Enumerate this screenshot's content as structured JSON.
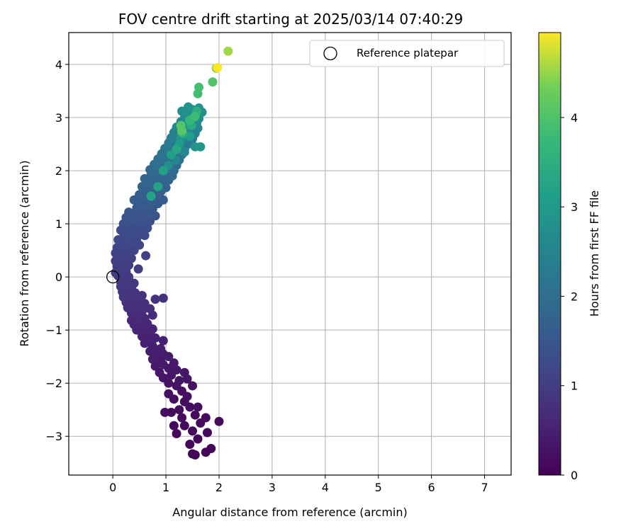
{
  "chart_data": {
    "type": "scatter",
    "title": "FOV centre drift starting at 2025/03/14 07:40:29",
    "xlabel": "Angular distance from reference (arcmin)",
    "ylabel": "Rotation from reference (arcmin)",
    "xlim": [
      -0.83,
      7.5
    ],
    "ylim": [
      -3.73,
      4.6
    ],
    "xticks": [
      0,
      1,
      2,
      3,
      4,
      5,
      6,
      7
    ],
    "yticks": [
      -3,
      -2,
      -1,
      0,
      1,
      2,
      3,
      4
    ],
    "grid": true,
    "legend": {
      "placement": "top-right",
      "entries": [
        "Reference platepar"
      ]
    },
    "reference_point": {
      "x": 0,
      "y": 0
    },
    "colorbar": {
      "label": "Hours from first FF file",
      "colormap": "viridis",
      "range": [
        0,
        4.95
      ],
      "ticks": [
        0,
        1,
        2,
        3,
        4
      ]
    },
    "points": [
      {
        "x": 1.55,
        "y": -3.35,
        "h": 0.05
      },
      {
        "x": 1.5,
        "y": -3.33,
        "h": 0.05
      },
      {
        "x": 1.75,
        "y": -3.3,
        "h": 0.08
      },
      {
        "x": 1.85,
        "y": -3.23,
        "h": 0.08
      },
      {
        "x": 1.45,
        "y": -3.15,
        "h": 0.1
      },
      {
        "x": 1.6,
        "y": -3.05,
        "h": 0.1
      },
      {
        "x": 1.2,
        "y": -2.95,
        "h": 0.12
      },
      {
        "x": 1.5,
        "y": -2.9,
        "h": 0.12
      },
      {
        "x": 1.78,
        "y": -2.93,
        "h": 0.12
      },
      {
        "x": 1.15,
        "y": -2.8,
        "h": 0.12
      },
      {
        "x": 1.35,
        "y": -2.8,
        "h": 0.14
      },
      {
        "x": 1.65,
        "y": -2.75,
        "h": 0.14
      },
      {
        "x": 2.0,
        "y": -2.72,
        "h": 0.14
      },
      {
        "x": 1.3,
        "y": -2.65,
        "h": 0.16
      },
      {
        "x": 1.55,
        "y": -2.6,
        "h": 0.16
      },
      {
        "x": 1.75,
        "y": -2.65,
        "h": 0.16
      },
      {
        "x": 1.1,
        "y": -2.55,
        "h": 0.18
      },
      {
        "x": 1.25,
        "y": -2.5,
        "h": 0.18
      },
      {
        "x": 1.45,
        "y": -2.45,
        "h": 0.2
      },
      {
        "x": 1.6,
        "y": -2.45,
        "h": 0.2
      },
      {
        "x": 0.98,
        "y": -2.55,
        "h": 0.2
      },
      {
        "x": 1.35,
        "y": -2.35,
        "h": 0.22
      },
      {
        "x": 1.15,
        "y": -2.3,
        "h": 0.22
      },
      {
        "x": 1.4,
        "y": -2.25,
        "h": 0.24
      },
      {
        "x": 1.05,
        "y": -2.2,
        "h": 0.24
      },
      {
        "x": 1.3,
        "y": -2.15,
        "h": 0.26
      },
      {
        "x": 1.2,
        "y": -2.05,
        "h": 0.28
      },
      {
        "x": 1.5,
        "y": -2.05,
        "h": 0.28
      },
      {
        "x": 1.05,
        "y": -2.0,
        "h": 0.3
      },
      {
        "x": 1.25,
        "y": -1.95,
        "h": 0.3
      },
      {
        "x": 1.4,
        "y": -1.92,
        "h": 0.3
      },
      {
        "x": 0.95,
        "y": -1.9,
        "h": 0.32
      },
      {
        "x": 1.1,
        "y": -1.85,
        "h": 0.32
      },
      {
        "x": 1.35,
        "y": -1.8,
        "h": 0.34
      },
      {
        "x": 0.88,
        "y": -1.8,
        "h": 0.34
      },
      {
        "x": 1.2,
        "y": -1.75,
        "h": 0.36
      },
      {
        "x": 1.05,
        "y": -1.72,
        "h": 0.36
      },
      {
        "x": 0.8,
        "y": -1.68,
        "h": 0.38
      },
      {
        "x": 0.95,
        "y": -1.65,
        "h": 0.38
      },
      {
        "x": 1.15,
        "y": -1.62,
        "h": 0.38
      },
      {
        "x": 0.75,
        "y": -1.55,
        "h": 0.4
      },
      {
        "x": 0.9,
        "y": -1.55,
        "h": 0.4
      },
      {
        "x": 1.05,
        "y": -1.5,
        "h": 0.42
      },
      {
        "x": 0.95,
        "y": -1.45,
        "h": 0.42
      },
      {
        "x": 0.8,
        "y": -1.45,
        "h": 0.44
      },
      {
        "x": 0.7,
        "y": -1.4,
        "h": 0.44
      },
      {
        "x": 0.9,
        "y": -1.35,
        "h": 0.46
      },
      {
        "x": 0.75,
        "y": -1.3,
        "h": 0.46
      },
      {
        "x": 0.6,
        "y": -1.25,
        "h": 0.48
      },
      {
        "x": 0.95,
        "y": -1.2,
        "h": 0.48
      },
      {
        "x": 0.65,
        "y": -1.2,
        "h": 0.5
      },
      {
        "x": 0.8,
        "y": -1.15,
        "h": 0.5
      },
      {
        "x": 0.55,
        "y": -1.12,
        "h": 0.52
      },
      {
        "x": 0.7,
        "y": -1.08,
        "h": 0.52
      },
      {
        "x": 0.6,
        "y": -1.02,
        "h": 0.54
      },
      {
        "x": 0.45,
        "y": -1.0,
        "h": 0.56
      },
      {
        "x": 0.75,
        "y": -0.98,
        "h": 0.56
      },
      {
        "x": 0.55,
        "y": -0.92,
        "h": 0.58
      },
      {
        "x": 0.4,
        "y": -0.9,
        "h": 0.6
      },
      {
        "x": 0.65,
        "y": -0.88,
        "h": 0.6
      },
      {
        "x": 0.5,
        "y": -0.85,
        "h": 0.62
      },
      {
        "x": 0.35,
        "y": -0.82,
        "h": 0.62
      },
      {
        "x": 0.6,
        "y": -0.78,
        "h": 0.64
      },
      {
        "x": 0.45,
        "y": -0.75,
        "h": 0.66
      },
      {
        "x": 0.75,
        "y": -0.72,
        "h": 0.66
      },
      {
        "x": 0.35,
        "y": -0.68,
        "h": 0.68
      },
      {
        "x": 0.55,
        "y": -0.65,
        "h": 0.7
      },
      {
        "x": 0.42,
        "y": -0.62,
        "h": 0.7
      },
      {
        "x": 0.7,
        "y": -0.6,
        "h": 0.72
      },
      {
        "x": 0.28,
        "y": -0.58,
        "h": 0.72
      },
      {
        "x": 0.5,
        "y": -0.55,
        "h": 0.74
      },
      {
        "x": 0.38,
        "y": -0.52,
        "h": 0.74
      },
      {
        "x": 0.6,
        "y": -0.5,
        "h": 0.76
      },
      {
        "x": 0.25,
        "y": -0.48,
        "h": 0.76
      },
      {
        "x": 0.48,
        "y": -0.45,
        "h": 0.78
      },
      {
        "x": 0.8,
        "y": -0.42,
        "h": 0.78
      },
      {
        "x": 0.95,
        "y": -0.4,
        "h": 0.8
      },
      {
        "x": 0.35,
        "y": -0.4,
        "h": 0.8
      },
      {
        "x": 0.2,
        "y": -0.38,
        "h": 0.82
      },
      {
        "x": 0.55,
        "y": -0.35,
        "h": 0.82
      },
      {
        "x": 0.3,
        "y": -0.32,
        "h": 0.84
      },
      {
        "x": 0.42,
        "y": -0.3,
        "h": 0.84
      },
      {
        "x": 0.18,
        "y": -0.28,
        "h": 0.86
      },
      {
        "x": 0.25,
        "y": -0.22,
        "h": 0.86
      },
      {
        "x": 0.35,
        "y": -0.2,
        "h": 0.88
      },
      {
        "x": 0.15,
        "y": -0.18,
        "h": 0.88
      },
      {
        "x": 0.28,
        "y": -0.15,
        "h": 0.9
      },
      {
        "x": 0.4,
        "y": -0.12,
        "h": 0.9
      },
      {
        "x": 0.15,
        "y": -0.1,
        "h": 0.9
      },
      {
        "x": 0.22,
        "y": -0.05,
        "h": 0.92
      },
      {
        "x": 0.3,
        "y": 0.0,
        "h": 0.92
      },
      {
        "x": 0.1,
        "y": 0.02,
        "h": 0.94
      },
      {
        "x": 0.18,
        "y": 0.05,
        "h": 0.94
      },
      {
        "x": 0.05,
        "y": 0.08,
        "h": 0.96
      },
      {
        "x": 0.25,
        "y": 0.1,
        "h": 0.96
      },
      {
        "x": 0.12,
        "y": 0.12,
        "h": 0.98
      },
      {
        "x": 0.48,
        "y": 0.15,
        "h": 0.98
      },
      {
        "x": 0.2,
        "y": 0.18,
        "h": 1.0
      },
      {
        "x": 0.08,
        "y": 0.2,
        "h": 1.0
      },
      {
        "x": 0.3,
        "y": 0.22,
        "h": 1.02
      },
      {
        "x": 0.15,
        "y": 0.25,
        "h": 1.02
      },
      {
        "x": 0.05,
        "y": 0.3,
        "h": 1.04
      },
      {
        "x": 0.22,
        "y": 0.32,
        "h": 1.04
      },
      {
        "x": 0.35,
        "y": 0.35,
        "h": 1.06
      },
      {
        "x": 0.12,
        "y": 0.38,
        "h": 1.06
      },
      {
        "x": 0.62,
        "y": 0.4,
        "h": 1.08
      },
      {
        "x": 0.25,
        "y": 0.42,
        "h": 1.08
      },
      {
        "x": 0.05,
        "y": 0.45,
        "h": 1.1
      },
      {
        "x": 0.18,
        "y": 0.48,
        "h": 1.1
      },
      {
        "x": 0.4,
        "y": 0.5,
        "h": 1.12
      },
      {
        "x": 0.3,
        "y": 0.52,
        "h": 1.12
      },
      {
        "x": 0.08,
        "y": 0.55,
        "h": 1.14
      },
      {
        "x": 0.22,
        "y": 0.58,
        "h": 1.14
      },
      {
        "x": 0.5,
        "y": 0.6,
        "h": 1.16
      },
      {
        "x": 0.15,
        "y": 0.62,
        "h": 1.16
      },
      {
        "x": 0.35,
        "y": 0.65,
        "h": 1.18
      },
      {
        "x": 0.28,
        "y": 0.68,
        "h": 1.2
      },
      {
        "x": 0.1,
        "y": 0.7,
        "h": 1.2
      },
      {
        "x": 0.45,
        "y": 0.72,
        "h": 1.22
      },
      {
        "x": 0.2,
        "y": 0.75,
        "h": 1.22
      },
      {
        "x": 0.6,
        "y": 0.78,
        "h": 1.24
      },
      {
        "x": 0.35,
        "y": 0.8,
        "h": 1.26
      },
      {
        "x": 0.25,
        "y": 0.82,
        "h": 1.26
      },
      {
        "x": 0.5,
        "y": 0.85,
        "h": 1.28
      },
      {
        "x": 0.15,
        "y": 0.88,
        "h": 1.28
      },
      {
        "x": 0.4,
        "y": 0.9,
        "h": 1.3
      },
      {
        "x": 0.65,
        "y": 0.92,
        "h": 1.32
      },
      {
        "x": 0.3,
        "y": 0.95,
        "h": 1.32
      },
      {
        "x": 0.55,
        "y": 0.98,
        "h": 1.34
      },
      {
        "x": 0.2,
        "y": 1.0,
        "h": 1.36
      },
      {
        "x": 0.45,
        "y": 1.02,
        "h": 1.36
      },
      {
        "x": 0.7,
        "y": 1.05,
        "h": 1.38
      },
      {
        "x": 0.35,
        "y": 1.08,
        "h": 1.4
      },
      {
        "x": 0.6,
        "y": 1.1,
        "h": 1.4
      },
      {
        "x": 0.25,
        "y": 1.12,
        "h": 1.42
      },
      {
        "x": 0.5,
        "y": 1.15,
        "h": 1.44
      },
      {
        "x": 0.8,
        "y": 1.15,
        "h": 1.44
      },
      {
        "x": 0.4,
        "y": 1.18,
        "h": 1.46
      },
      {
        "x": 0.65,
        "y": 1.2,
        "h": 1.48
      },
      {
        "x": 0.3,
        "y": 1.22,
        "h": 1.48
      },
      {
        "x": 0.55,
        "y": 1.25,
        "h": 1.5
      },
      {
        "x": 0.75,
        "y": 1.28,
        "h": 1.52
      },
      {
        "x": 0.45,
        "y": 1.3,
        "h": 1.52
      },
      {
        "x": 0.6,
        "y": 1.35,
        "h": 1.54
      },
      {
        "x": 0.85,
        "y": 1.38,
        "h": 1.56
      },
      {
        "x": 0.5,
        "y": 1.4,
        "h": 1.56
      },
      {
        "x": 0.7,
        "y": 1.42,
        "h": 1.58
      },
      {
        "x": 0.4,
        "y": 1.45,
        "h": 1.6
      },
      {
        "x": 0.95,
        "y": 1.45,
        "h": 1.6
      },
      {
        "x": 0.6,
        "y": 1.5,
        "h": 1.62
      },
      {
        "x": 0.8,
        "y": 1.52,
        "h": 1.64
      },
      {
        "x": 0.5,
        "y": 1.55,
        "h": 1.64
      },
      {
        "x": 0.7,
        "y": 1.58,
        "h": 1.66
      },
      {
        "x": 0.9,
        "y": 1.6,
        "h": 1.68
      },
      {
        "x": 0.6,
        "y": 1.62,
        "h": 1.7
      },
      {
        "x": 0.75,
        "y": 1.65,
        "h": 1.7
      },
      {
        "x": 1.0,
        "y": 1.68,
        "h": 1.72
      },
      {
        "x": 0.55,
        "y": 1.7,
        "h": 1.74
      },
      {
        "x": 0.85,
        "y": 1.72,
        "h": 1.74
      },
      {
        "x": 0.65,
        "y": 1.75,
        "h": 1.76
      },
      {
        "x": 0.95,
        "y": 1.78,
        "h": 1.78
      },
      {
        "x": 0.75,
        "y": 1.8,
        "h": 1.8
      },
      {
        "x": 1.05,
        "y": 1.82,
        "h": 1.8
      },
      {
        "x": 0.6,
        "y": 1.85,
        "h": 1.82
      },
      {
        "x": 0.88,
        "y": 1.88,
        "h": 1.84
      },
      {
        "x": 1.12,
        "y": 1.9,
        "h": 1.86
      },
      {
        "x": 0.72,
        "y": 1.92,
        "h": 1.86
      },
      {
        "x": 0.98,
        "y": 1.95,
        "h": 1.88
      },
      {
        "x": 0.82,
        "y": 1.98,
        "h": 1.9
      },
      {
        "x": 1.15,
        "y": 2.0,
        "h": 1.92
      },
      {
        "x": 0.7,
        "y": 2.02,
        "h": 1.92
      },
      {
        "x": 1.0,
        "y": 2.05,
        "h": 1.94
      },
      {
        "x": 0.9,
        "y": 2.08,
        "h": 1.96
      },
      {
        "x": 1.2,
        "y": 2.1,
        "h": 1.98
      },
      {
        "x": 0.78,
        "y": 2.12,
        "h": 2.0
      },
      {
        "x": 1.08,
        "y": 2.15,
        "h": 2.0
      },
      {
        "x": 0.95,
        "y": 2.18,
        "h": 2.02
      },
      {
        "x": 1.25,
        "y": 2.2,
        "h": 2.04
      },
      {
        "x": 0.85,
        "y": 2.22,
        "h": 2.06
      },
      {
        "x": 1.15,
        "y": 2.25,
        "h": 2.08
      },
      {
        "x": 1.0,
        "y": 2.28,
        "h": 2.1
      },
      {
        "x": 1.3,
        "y": 2.3,
        "h": 2.12
      },
      {
        "x": 0.92,
        "y": 2.32,
        "h": 2.14
      },
      {
        "x": 1.22,
        "y": 2.35,
        "h": 2.16
      },
      {
        "x": 1.08,
        "y": 2.38,
        "h": 2.18
      },
      {
        "x": 1.35,
        "y": 2.4,
        "h": 2.2
      },
      {
        "x": 0.98,
        "y": 2.42,
        "h": 2.22
      },
      {
        "x": 1.28,
        "y": 2.45,
        "h": 2.24
      },
      {
        "x": 1.15,
        "y": 2.48,
        "h": 2.26
      },
      {
        "x": 1.42,
        "y": 2.5,
        "h": 2.28
      },
      {
        "x": 1.05,
        "y": 2.52,
        "h": 2.3
      },
      {
        "x": 1.35,
        "y": 2.55,
        "h": 2.32
      },
      {
        "x": 1.2,
        "y": 2.58,
        "h": 2.34
      },
      {
        "x": 1.5,
        "y": 2.6,
        "h": 2.36
      },
      {
        "x": 1.1,
        "y": 2.62,
        "h": 2.38
      },
      {
        "x": 1.4,
        "y": 2.65,
        "h": 2.4
      },
      {
        "x": 1.25,
        "y": 2.68,
        "h": 2.42
      },
      {
        "x": 1.55,
        "y": 2.7,
        "h": 2.44
      },
      {
        "x": 1.15,
        "y": 2.72,
        "h": 2.46
      },
      {
        "x": 1.45,
        "y": 2.75,
        "h": 2.48
      },
      {
        "x": 1.3,
        "y": 2.78,
        "h": 2.5
      },
      {
        "x": 1.6,
        "y": 2.8,
        "h": 2.52
      },
      {
        "x": 1.2,
        "y": 2.82,
        "h": 2.54
      },
      {
        "x": 1.5,
        "y": 2.85,
        "h": 2.56
      },
      {
        "x": 1.35,
        "y": 2.88,
        "h": 2.58
      },
      {
        "x": 1.58,
        "y": 2.9,
        "h": 2.6
      },
      {
        "x": 1.28,
        "y": 2.92,
        "h": 2.62
      },
      {
        "x": 1.45,
        "y": 2.95,
        "h": 2.65
      },
      {
        "x": 1.62,
        "y": 2.98,
        "h": 2.68
      },
      {
        "x": 1.35,
        "y": 3.0,
        "h": 2.7
      },
      {
        "x": 1.55,
        "y": 3.05,
        "h": 2.72
      },
      {
        "x": 1.4,
        "y": 3.08,
        "h": 2.75
      },
      {
        "x": 1.68,
        "y": 3.1,
        "h": 2.78
      },
      {
        "x": 1.3,
        "y": 3.12,
        "h": 2.8
      },
      {
        "x": 1.5,
        "y": 3.15,
        "h": 2.82
      },
      {
        "x": 1.62,
        "y": 3.18,
        "h": 2.85
      },
      {
        "x": 1.42,
        "y": 3.2,
        "h": 2.88
      },
      {
        "x": 1.55,
        "y": 2.45,
        "h": 2.9
      },
      {
        "x": 1.65,
        "y": 2.45,
        "h": 2.95
      },
      {
        "x": 1.35,
        "y": 2.35,
        "h": 2.6
      },
      {
        "x": 1.18,
        "y": 2.2,
        "h": 2.55
      },
      {
        "x": 1.05,
        "y": 2.1,
        "h": 2.7
      },
      {
        "x": 1.28,
        "y": 2.6,
        "h": 2.95
      },
      {
        "x": 1.38,
        "y": 2.85,
        "h": 3.0
      },
      {
        "x": 1.25,
        "y": 2.5,
        "h": 3.05
      },
      {
        "x": 1.45,
        "y": 2.65,
        "h": 3.1
      },
      {
        "x": 1.1,
        "y": 2.3,
        "h": 3.1
      },
      {
        "x": 1.52,
        "y": 3.0,
        "h": 3.15
      },
      {
        "x": 0.95,
        "y": 2.0,
        "h": 3.2
      },
      {
        "x": 0.72,
        "y": 1.52,
        "h": 3.25
      },
      {
        "x": 0.85,
        "y": 1.7,
        "h": 3.2
      },
      {
        "x": 1.2,
        "y": 2.4,
        "h": 3.3
      },
      {
        "x": 1.32,
        "y": 2.7,
        "h": 3.35
      },
      {
        "x": 1.48,
        "y": 2.85,
        "h": 3.4
      },
      {
        "x": 1.58,
        "y": 3.12,
        "h": 3.5
      },
      {
        "x": 1.3,
        "y": 2.72,
        "h": 3.6
      },
      {
        "x": 1.45,
        "y": 2.95,
        "h": 3.7
      },
      {
        "x": 1.55,
        "y": 3.02,
        "h": 3.8
      },
      {
        "x": 1.6,
        "y": 3.45,
        "h": 3.85
      },
      {
        "x": 1.62,
        "y": 3.57,
        "h": 3.9
      },
      {
        "x": 1.88,
        "y": 3.67,
        "h": 4.0
      },
      {
        "x": 1.28,
        "y": 2.85,
        "h": 4.05
      },
      {
        "x": 1.3,
        "y": 2.75,
        "h": 4.1
      },
      {
        "x": 1.95,
        "y": 3.93,
        "h": 4.3
      },
      {
        "x": 2.17,
        "y": 4.25,
        "h": 4.55
      },
      {
        "x": 1.97,
        "y": 3.94,
        "h": 4.95
      }
    ]
  }
}
